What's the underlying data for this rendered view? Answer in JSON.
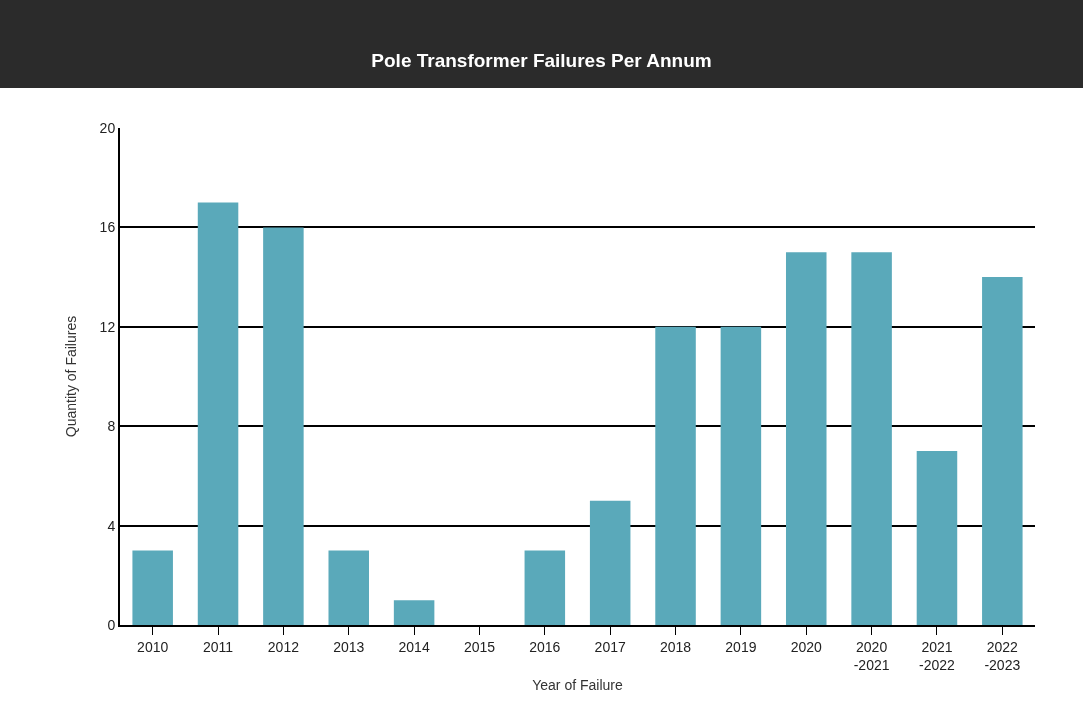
{
  "chart_data": {
    "type": "bar",
    "title": "Pole Transformer Failures Per Annum",
    "xlabel": "Year of Failure",
    "ylabel": "Quantity of Failures",
    "categories": [
      "2010",
      "2011",
      "2012",
      "2013",
      "2014",
      "2015",
      "2016",
      "2017",
      "2018",
      "2019",
      "2020",
      "2020\n-2021",
      "2021\n-2022",
      "2022\n-2023"
    ],
    "values": [
      3,
      17,
      16,
      3,
      1,
      0,
      3,
      5,
      12,
      12,
      15,
      15,
      7,
      14
    ],
    "color": "#5aa9ba",
    "ylim": [
      0,
      20
    ],
    "yticks": [
      0,
      4,
      8,
      12,
      16,
      20
    ],
    "grid": "y",
    "legend": false
  }
}
